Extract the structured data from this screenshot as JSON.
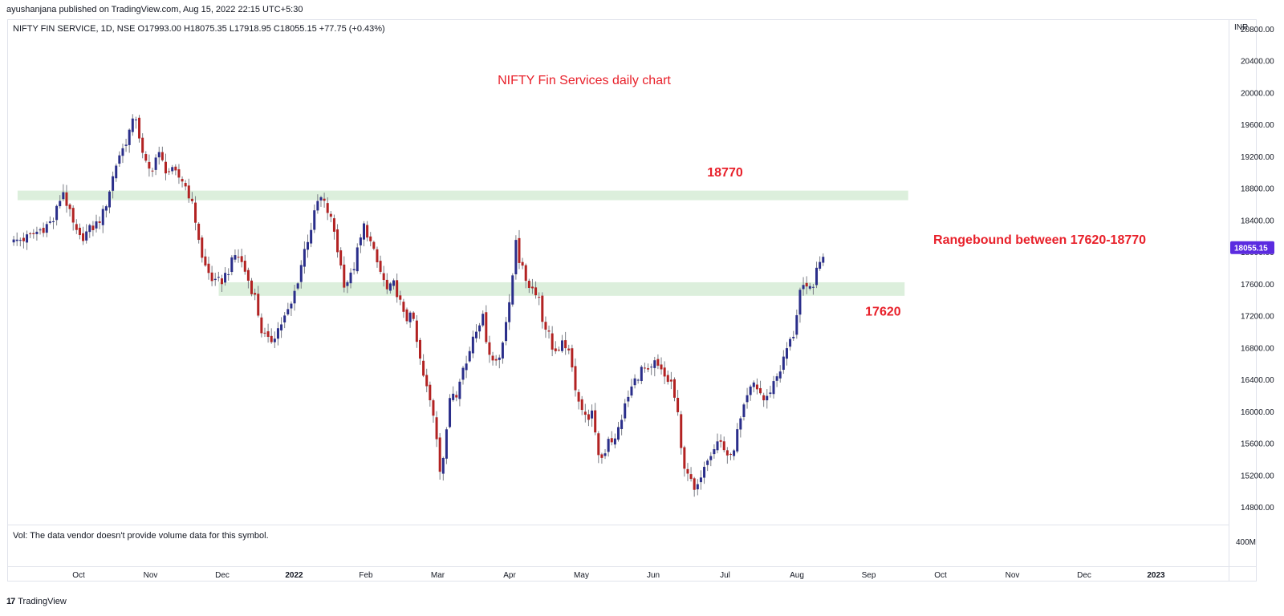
{
  "publisher_line": "ayushanjana published on TradingView.com, Aug 15, 2022 22:15 UTC+5:30",
  "symbol": {
    "legend": "NIFTY FIN SERVICE, 1D, NSE  O17993.00  H18075.35  L17918.95  C18055.15  +77.75 (+0.43%)"
  },
  "price_axis": {
    "currency": "INR",
    "last_price_label": "18055.15",
    "last_price_color": "#5b2be0",
    "volume_tick": "400M"
  },
  "volume_note": "Vol: The data vendor doesn't provide volume data for this symbol.",
  "footer": {
    "icon": "tradingview-logo-icon",
    "brand": "TradingView"
  },
  "colors": {
    "up": "#2a2e8a",
    "down": "#b22222",
    "zone": "#dcefdc",
    "annotation": "#e8202a"
  },
  "chart_data": {
    "type": "candlestick",
    "title": "NIFTY Fin Services daily chart",
    "ylim": [
      14600,
      20900
    ],
    "y_ticks": [
      20800,
      20400,
      20000,
      19600,
      19200,
      18800,
      18400,
      18000,
      17600,
      17200,
      16800,
      16400,
      16000,
      15600,
      15200,
      14800
    ],
    "x_ticks": [
      {
        "label": "Oct",
        "pos": 0
      },
      {
        "label": "Nov",
        "pos": 1
      },
      {
        "label": "Dec",
        "pos": 2
      },
      {
        "label": "2022",
        "pos": 3,
        "bold": true
      },
      {
        "label": "Feb",
        "pos": 4
      },
      {
        "label": "Mar",
        "pos": 5
      },
      {
        "label": "Apr",
        "pos": 6
      },
      {
        "label": "May",
        "pos": 7
      },
      {
        "label": "Jun",
        "pos": 8
      },
      {
        "label": "Jul",
        "pos": 9
      },
      {
        "label": "Aug",
        "pos": 10
      },
      {
        "label": "Sep",
        "pos": 11
      },
      {
        "label": "Oct",
        "pos": 12
      },
      {
        "label": "Nov",
        "pos": 13
      },
      {
        "label": "Dec",
        "pos": 14
      },
      {
        "label": "2023",
        "pos": 15,
        "bold": true
      }
    ],
    "close_path": [
      [
        -0.95,
        18100
      ],
      [
        -0.85,
        18150
      ],
      [
        -0.7,
        18180
      ],
      [
        -0.5,
        18300
      ],
      [
        -0.35,
        18400
      ],
      [
        -0.22,
        18780
      ],
      [
        -0.1,
        18400
      ],
      [
        0.0,
        18150
      ],
      [
        0.12,
        18250
      ],
      [
        0.25,
        18350
      ],
      [
        0.35,
        18500
      ],
      [
        0.45,
        18850
      ],
      [
        0.55,
        19200
      ],
      [
        0.62,
        19300
      ],
      [
        0.72,
        19550
      ],
      [
        0.8,
        19700
      ],
      [
        0.9,
        19150
      ],
      [
        1.0,
        19000
      ],
      [
        1.1,
        19250
      ],
      [
        1.2,
        19050
      ],
      [
        1.3,
        19000
      ],
      [
        1.45,
        18900
      ],
      [
        1.55,
        18700
      ],
      [
        1.65,
        18300
      ],
      [
        1.72,
        17900
      ],
      [
        1.8,
        17750
      ],
      [
        1.9,
        17600
      ],
      [
        2.0,
        17650
      ],
      [
        2.1,
        17800
      ],
      [
        2.2,
        18000
      ],
      [
        2.3,
        17800
      ],
      [
        2.38,
        17600
      ],
      [
        2.45,
        17450
      ],
      [
        2.55,
        17000
      ],
      [
        2.65,
        16850
      ],
      [
        2.75,
        17000
      ],
      [
        2.85,
        17150
      ],
      [
        2.95,
        17300
      ],
      [
        3.05,
        17650
      ],
      [
        3.15,
        18050
      ],
      [
        3.25,
        18350
      ],
      [
        3.35,
        18700
      ],
      [
        3.45,
        18550
      ],
      [
        3.55,
        18300
      ],
      [
        3.62,
        17950
      ],
      [
        3.7,
        17600
      ],
      [
        3.8,
        17700
      ],
      [
        3.88,
        18000
      ],
      [
        3.98,
        18350
      ],
      [
        4.05,
        18150
      ],
      [
        4.12,
        17950
      ],
      [
        4.2,
        17750
      ],
      [
        4.3,
        17500
      ],
      [
        4.4,
        17600
      ],
      [
        4.48,
        17350
      ],
      [
        4.55,
        17100
      ],
      [
        4.62,
        17300
      ],
      [
        4.7,
        16900
      ],
      [
        4.78,
        16500
      ],
      [
        4.87,
        16200
      ],
      [
        4.96,
        15900
      ],
      [
        5.03,
        15300
      ],
      [
        5.1,
        15500
      ],
      [
        5.18,
        16300
      ],
      [
        5.25,
        16200
      ],
      [
        5.32,
        16500
      ],
      [
        5.4,
        16600
      ],
      [
        5.5,
        17000
      ],
      [
        5.62,
        17200
      ],
      [
        5.7,
        16800
      ],
      [
        5.78,
        16600
      ],
      [
        5.86,
        16700
      ],
      [
        5.94,
        17100
      ],
      [
        6.02,
        17400
      ],
      [
        6.08,
        18250
      ],
      [
        6.12,
        17950
      ],
      [
        6.2,
        17700
      ],
      [
        6.3,
        17550
      ],
      [
        6.4,
        17500
      ],
      [
        6.45,
        17150
      ],
      [
        6.52,
        17050
      ],
      [
        6.6,
        16800
      ],
      [
        6.68,
        16700
      ],
      [
        6.76,
        16900
      ],
      [
        6.84,
        16650
      ],
      [
        6.92,
        16300
      ],
      [
        7.0,
        16050
      ],
      [
        7.06,
        15900
      ],
      [
        7.14,
        16000
      ],
      [
        7.22,
        15500
      ],
      [
        7.3,
        15400
      ],
      [
        7.38,
        15700
      ],
      [
        7.46,
        15600
      ],
      [
        7.55,
        15900
      ],
      [
        7.62,
        16100
      ],
      [
        7.7,
        16300
      ],
      [
        7.78,
        16450
      ],
      [
        7.86,
        16550
      ],
      [
        7.94,
        16450
      ],
      [
        8.02,
        16600
      ],
      [
        8.1,
        16500
      ],
      [
        8.18,
        16400
      ],
      [
        8.26,
        16350
      ],
      [
        8.34,
        15950
      ],
      [
        8.4,
        15400
      ],
      [
        8.48,
        15250
      ],
      [
        8.54,
        15050
      ],
      [
        8.6,
        14950
      ],
      [
        8.68,
        15300
      ],
      [
        8.76,
        15450
      ],
      [
        8.84,
        15550
      ],
      [
        8.92,
        15650
      ],
      [
        9.0,
        15500
      ],
      [
        9.08,
        15400
      ],
      [
        9.16,
        15700
      ],
      [
        9.24,
        15950
      ],
      [
        9.32,
        16200
      ],
      [
        9.4,
        16350
      ],
      [
        9.48,
        16250
      ],
      [
        9.56,
        16100
      ],
      [
        9.64,
        16300
      ],
      [
        9.72,
        16450
      ],
      [
        9.8,
        16600
      ],
      [
        9.88,
        16850
      ],
      [
        9.94,
        16900
      ],
      [
        10.0,
        17250
      ],
      [
        10.05,
        17550
      ],
      [
        10.12,
        17500
      ],
      [
        10.2,
        17550
      ],
      [
        10.28,
        17750
      ],
      [
        10.35,
        17950
      ],
      [
        10.4,
        18055
      ]
    ],
    "zones": [
      {
        "low": 18650,
        "high": 18770,
        "x_start": -0.85,
        "x_end": 11.55,
        "label": "18770",
        "label_x": 9.0,
        "label_y": 18950
      },
      {
        "low": 17450,
        "high": 17620,
        "x_start": 1.95,
        "x_end": 11.5,
        "label": "17620",
        "label_x": 11.2,
        "label_y": 17200
      }
    ],
    "annotations": [
      {
        "text": "Rangebound between 17620-18770",
        "x": 11.9,
        "y": 18100
      }
    ]
  }
}
